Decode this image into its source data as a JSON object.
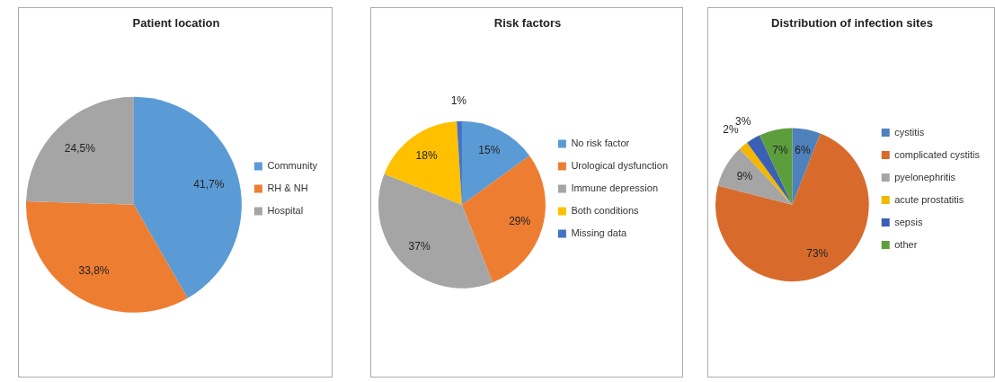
{
  "chart_data": [
    {
      "type": "pie",
      "title": "Patient location",
      "categories": [
        "Community",
        "RH & NH",
        "Hospital"
      ],
      "values": [
        41.7,
        33.8,
        24.5
      ],
      "colors": [
        "#5b9bd5",
        "#ed7d31",
        "#a5a5a5"
      ],
      "value_labels": [
        "41,7%",
        "33,8%",
        "24,5%"
      ],
      "legend": "right"
    },
    {
      "type": "pie",
      "title": "Risk factors",
      "categories": [
        "No risk factor",
        "Urological dysfunction",
        "Immune depression",
        "Both conditions",
        "Missing data"
      ],
      "values": [
        15,
        29,
        37,
        18,
        1
      ],
      "colors": [
        "#5b9bd5",
        "#ed7d31",
        "#a5a5a5",
        "#ffc000",
        "#4472c4"
      ],
      "value_labels": [
        "15%",
        "29%",
        "37%",
        "18%",
        "1%"
      ],
      "legend": "right"
    },
    {
      "type": "pie",
      "title": "Distribution of infection sites",
      "categories": [
        "cystitis",
        "complicated cystitis",
        "pyelonephritis",
        "acute prostatitis",
        "sepsis",
        "other"
      ],
      "values": [
        6,
        73,
        9,
        2,
        3,
        7
      ],
      "colors": [
        "#4f81bd",
        "#d86b2c",
        "#a5a5a5",
        "#f2b800",
        "#3a5fb5",
        "#5d9e3c"
      ],
      "value_labels": [
        "6%",
        "73%",
        "9%",
        "2%",
        "3%",
        "7%"
      ],
      "legend": "right"
    }
  ]
}
